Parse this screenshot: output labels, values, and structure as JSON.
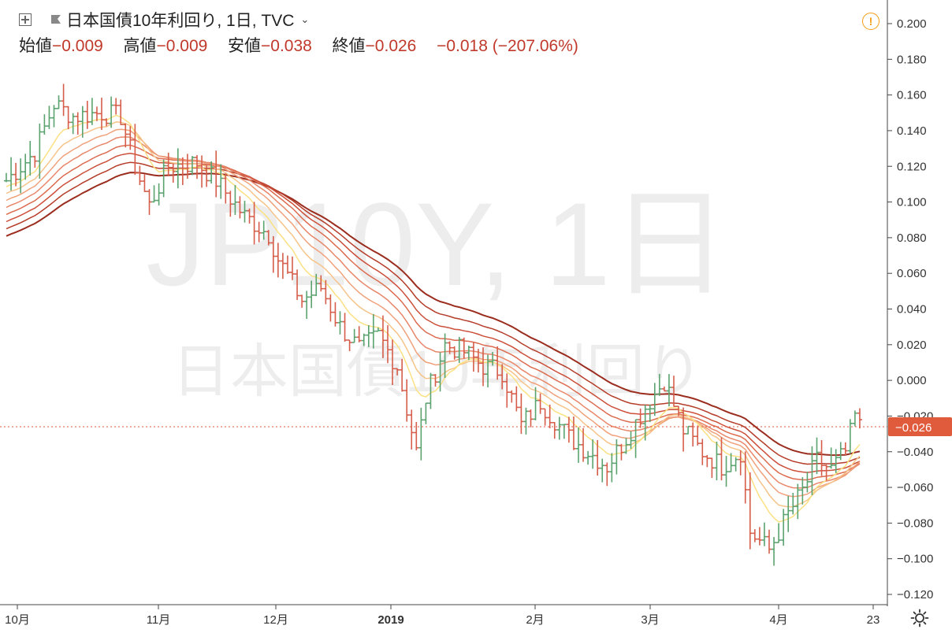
{
  "header": {
    "symbol_title": "日本国債10年利回り, 1日, TVC",
    "ohlc": [
      {
        "label": "始値",
        "value": "−0.009"
      },
      {
        "label": "高値",
        "value": "−0.009"
      },
      {
        "label": "安値",
        "value": "−0.038"
      },
      {
        "label": "終値",
        "value": "−0.026"
      }
    ],
    "change": "−0.018 (−207.06%)"
  },
  "watermark": {
    "symbol": "JP10Y, 1日",
    "name": "日本国債10年利回り"
  },
  "colors": {
    "up": "#5aa36f",
    "down": "#d55d4a",
    "price_badge": "#e05a3c",
    "ribbon": [
      "#9b2d1f",
      "#b53d2a",
      "#cc4f3a",
      "#dc6b4f",
      "#e8876a",
      "#f0a17b",
      "#f6c489",
      "#fbe183"
    ]
  },
  "chart_data": {
    "type": "ohlc",
    "current_price": -0.026,
    "current_price_label": "−0.026",
    "y_ticks": [
      "0.200",
      "0.180",
      "0.160",
      "0.140",
      "0.120",
      "0.100",
      "0.080",
      "0.060",
      "0.040",
      "0.020",
      "0.000",
      "−0.020",
      "−0.040",
      "−0.060",
      "−0.080",
      "−0.100",
      "−0.120"
    ],
    "ylim": [
      -0.12,
      0.2
    ],
    "x_labels": [
      "10月",
      "11月",
      "12月",
      "2019",
      "2月",
      "3月",
      "4月",
      "23"
    ],
    "grid": false,
    "ribbon_series": 8
  }
}
